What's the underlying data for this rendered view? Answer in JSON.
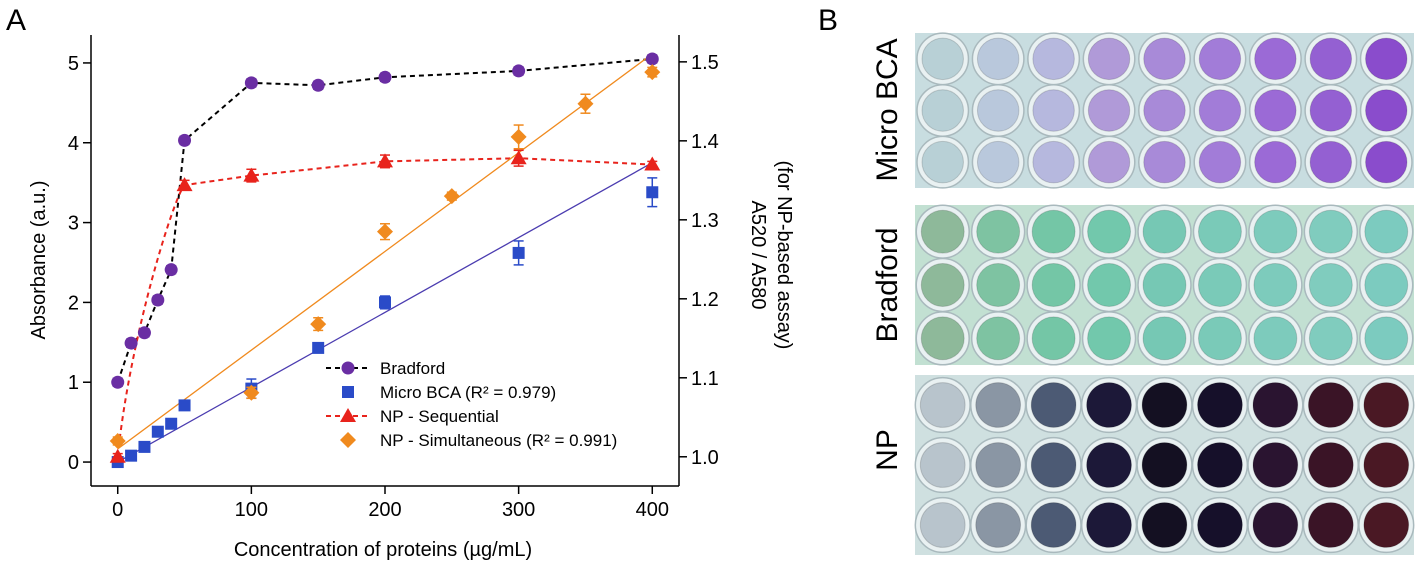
{
  "panels": {
    "a_label": "A",
    "b_label": "B"
  },
  "chart_data": {
    "type": "scatter",
    "xlabel": "Concentration of proteins (µg/mL)",
    "ylabel_left": "Absorbance (a.u.)",
    "ylabel_right_line1": "A520 / A580",
    "ylabel_right_line2": "(for NP-based assay)",
    "xlim": [
      -20,
      420
    ],
    "ylim_left": [
      -0.3,
      5.35
    ],
    "ylim_right": [
      0.963,
      1.534
    ],
    "x_ticks": [
      0,
      100,
      200,
      300,
      400
    ],
    "y_ticks_left": [
      0,
      1,
      2,
      3,
      4,
      5
    ],
    "y_ticks_right": [
      1.0,
      1.1,
      1.2,
      1.3,
      1.4,
      1.5
    ],
    "y_ticks_right_labels": [
      "1.0",
      "1.1",
      "1.2",
      "1.3",
      "1.4",
      "1.5"
    ],
    "legend_position": "bottom-right",
    "grid": false,
    "series": [
      {
        "name": "Bradford",
        "axis": "left",
        "marker": "circle",
        "color": "#6a2ea3",
        "line_color": "#000000",
        "line": "dashed-connect",
        "x": [
          0,
          10,
          20,
          30,
          40,
          50,
          100,
          150,
          200,
          300,
          400
        ],
        "y": [
          1.0,
          1.49,
          1.62,
          2.03,
          2.41,
          4.03,
          4.75,
          4.72,
          4.82,
          4.9,
          5.05
        ],
        "err": [
          0.05,
          0.05,
          0.05,
          0.05,
          0.05,
          0.05,
          0.05,
          0.05,
          0.05,
          0.05,
          0.05
        ]
      },
      {
        "name": "Micro BCA (R² = 0.979)",
        "axis": "left",
        "marker": "square",
        "color": "#2a4bc8",
        "line_color": "#4b3cb0",
        "line": "linear-fit",
        "fit": [
          0,
          0.0,
          400,
          3.75
        ],
        "x": [
          0,
          10,
          20,
          30,
          40,
          50,
          100,
          150,
          200,
          300,
          400
        ],
        "y": [
          0.0,
          0.08,
          0.19,
          0.38,
          0.48,
          0.71,
          0.92,
          1.43,
          2.0,
          2.62,
          3.38
        ],
        "err": [
          0.04,
          0.04,
          0.04,
          0.05,
          0.05,
          0.06,
          0.12,
          0.05,
          0.08,
          0.15,
          0.18
        ]
      },
      {
        "name": "NP - Sequential",
        "axis": "right",
        "marker": "triangle",
        "color": "#e8231c",
        "line_color": "#e8231c",
        "line": "dashed-curve",
        "x": [
          0,
          50,
          100,
          200,
          300,
          400
        ],
        "y": [
          1.0,
          1.344,
          1.356,
          1.374,
          1.378,
          1.37
        ],
        "err": [
          0.004,
          0.006,
          0.008,
          0.008,
          0.01,
          0.004
        ]
      },
      {
        "name": "NP - Simultaneous (R² = 0.991)",
        "axis": "right",
        "marker": "diamond",
        "color": "#f08a1e",
        "line_color": "#f08a1e",
        "line": "linear-fit",
        "fit": [
          0,
          1.01,
          400,
          1.51
        ],
        "x": [
          0,
          100,
          150,
          200,
          250,
          300,
          350,
          400
        ],
        "y": [
          1.02,
          1.081,
          1.168,
          1.285,
          1.33,
          1.405,
          1.447,
          1.487
        ],
        "err": [
          0.005,
          0.007,
          0.008,
          0.01,
          0.005,
          0.015,
          0.012,
          0.006
        ]
      }
    ]
  },
  "plates": {
    "micro_bca": {
      "label": "Micro BCA"
    },
    "bradford": {
      "label": "Bradford"
    },
    "np": {
      "label": "NP"
    },
    "well_colors": {
      "micro_bca": [
        "#b8d0d6",
        "#b9c8dc",
        "#b6b8de",
        "#b09ad8",
        "#a88ad8",
        "#a27cd8",
        "#9b6ad6",
        "#9460d2",
        "#8a4ccc"
      ],
      "bradford": [
        "#8eb99a",
        "#7ec3a2",
        "#74c6a6",
        "#72c8ac",
        "#76c8b4",
        "#7acab8",
        "#7dcbbc",
        "#80ccbe",
        "#7ccbbf"
      ],
      "np": [
        "#b8c4cc",
        "#8a96a4",
        "#4c5a74",
        "#1c1838",
        "#141022",
        "#16102a",
        "#2a1430",
        "#3a1426",
        "#4a1824"
      ],
      "micro_bca_bg": "#c8dde0",
      "bradford_bg": "#c2e0d2",
      "np_bg": "#cfe0e0"
    }
  }
}
